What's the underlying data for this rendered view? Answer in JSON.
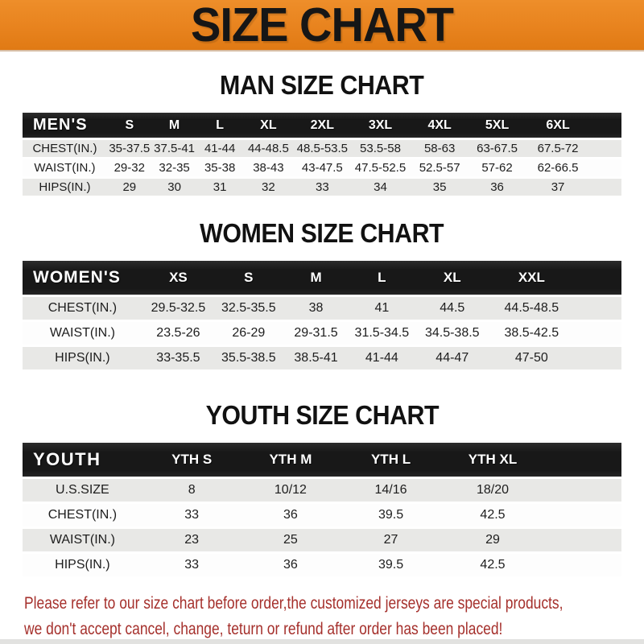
{
  "banner": {
    "title": "SIZE CHART"
  },
  "colors": {
    "banner_bg": "#E8831E",
    "banner_bg_light": "#EE8E2A",
    "banner_bg_dark": "#E07A14",
    "bar_bg": "#181818",
    "bar_text": "#FFFFFF",
    "stripe_gray": "#E8E8E6",
    "row_white": "#FDFDFD",
    "title_black": "#111111",
    "cell_text": "#1D1D1D",
    "note_red": "#A5302C"
  },
  "sections": [
    {
      "id": "men",
      "title": "MAN SIZE CHART",
      "header_label": "MEN'S",
      "columns": [
        "S",
        "M",
        "L",
        "XL",
        "2XL",
        "3XL",
        "4XL",
        "5XL",
        "6XL"
      ],
      "rows": [
        {
          "label": "CHEST(IN.)",
          "values": [
            "35-37.5",
            "37.5-41",
            "41-44",
            "44-48.5",
            "48.5-53.5",
            "53.5-58",
            "58-63",
            "63-67.5",
            "67.5-72"
          ]
        },
        {
          "label": "WAIST(IN.)",
          "values": [
            "29-32",
            "32-35",
            "35-38",
            "38-43",
            "43-47.5",
            "47.5-52.5",
            "52.5-57",
            "57-62",
            "62-66.5"
          ]
        },
        {
          "label": "HIPS(IN.)",
          "values": [
            "29",
            "30",
            "31",
            "32",
            "33",
            "34",
            "35",
            "36",
            "37"
          ]
        }
      ],
      "col_widths_percent": [
        14.1,
        7.5,
        7.5,
        7.7,
        8.5,
        9.5,
        9.9,
        9.9,
        9.3,
        11,
        5.1
      ]
    },
    {
      "id": "women",
      "title": "WOMEN SIZE CHART",
      "header_label": "WOMEN'S",
      "columns": [
        "XS",
        "S",
        "M",
        "L",
        "XL",
        "XXL"
      ],
      "rows": [
        {
          "label": "CHEST(IN.)",
          "values": [
            "29.5-32.5",
            "32.5-35.5",
            "38",
            "41",
            "44.5",
            "44.5-48.5"
          ]
        },
        {
          "label": "WAIST(IN.)",
          "values": [
            "23.5-26",
            "26-29",
            "29-31.5",
            "31.5-34.5",
            "34.5-38.5",
            "38.5-42.5"
          ]
        },
        {
          "label": "HIPS(IN.)",
          "values": [
            "33-35.5",
            "35.5-38.5",
            "38.5-41",
            "41-44",
            "44-47",
            "47-50"
          ]
        }
      ],
      "col_widths_percent": [
        20,
        12,
        11.5,
        11,
        11,
        12.5,
        14,
        8
      ]
    },
    {
      "id": "youth",
      "title": "YOUTH SIZE CHART",
      "header_label": "YOUTH",
      "columns": [
        "YTH S",
        "YTH M",
        "YTH L",
        "YTH XL"
      ],
      "rows": [
        {
          "label": "U.S.SIZE",
          "values": [
            "8",
            "10/12",
            "14/16",
            "18/20"
          ]
        },
        {
          "label": "CHEST(IN.)",
          "values": [
            "33",
            "36",
            "39.5",
            "42.5"
          ]
        },
        {
          "label": "WAIST(IN.)",
          "values": [
            "23",
            "25",
            "27",
            "29"
          ]
        },
        {
          "label": "HIPS(IN.)",
          "values": [
            "33",
            "36",
            "39.5",
            "42.5"
          ]
        }
      ],
      "col_widths_percent": [
        20,
        16.5,
        16.5,
        17,
        17,
        13
      ]
    }
  ],
  "note": {
    "lines": [
      "Please refer to our size chart before order,the customized jerseys are special products,",
      "we don't accept cancel, change, teturn or refund after order has been placed!"
    ]
  }
}
